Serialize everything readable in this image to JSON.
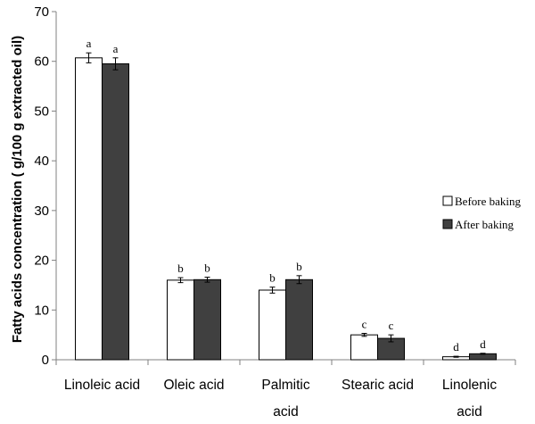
{
  "chart_data": {
    "type": "bar",
    "ylabel": "Fatty acids concentration ( g/100 g extracted oil)",
    "xlabel": "",
    "ylim": [
      0,
      70
    ],
    "yticks": [
      0,
      10,
      20,
      30,
      40,
      50,
      60,
      70
    ],
    "grid": false,
    "legend_position": "right",
    "categories": [
      [
        "Linoleic acid"
      ],
      [
        "Oleic acid"
      ],
      [
        "Palmitic",
        "acid"
      ],
      [
        "Stearic acid"
      ],
      [
        "Linolenic",
        "acid"
      ]
    ],
    "series": [
      {
        "name": "Before baking",
        "color": "#ffffff",
        "values": [
          60.7,
          16.0,
          14.0,
          5.0,
          0.6
        ],
        "errors": [
          1.0,
          0.5,
          0.6,
          0.3,
          0.1
        ],
        "letters": [
          "a",
          "b",
          "b",
          "c",
          "d"
        ]
      },
      {
        "name": "After baking",
        "color": "#404040",
        "values": [
          59.5,
          16.1,
          16.1,
          4.3,
          1.2
        ],
        "errors": [
          1.2,
          0.5,
          0.8,
          0.7,
          0.1
        ],
        "letters": [
          "a",
          "b",
          "b",
          "c",
          "d"
        ]
      }
    ]
  }
}
